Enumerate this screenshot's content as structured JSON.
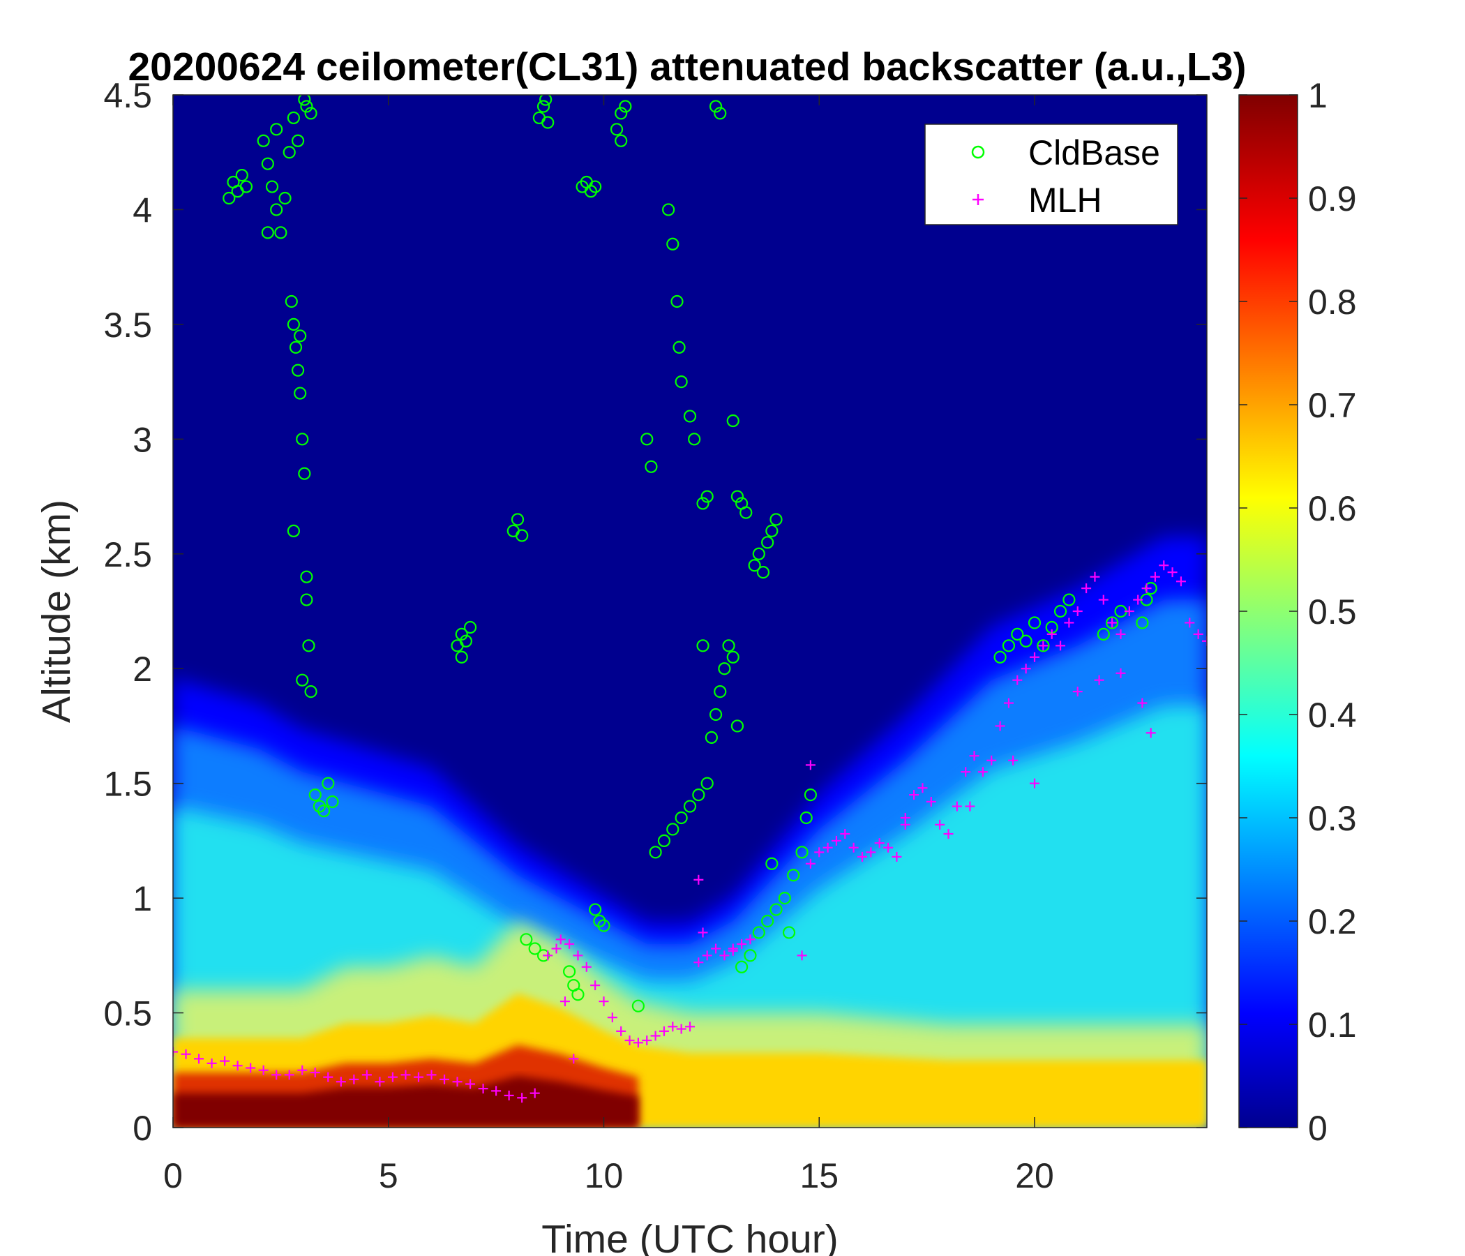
{
  "chart_data": {
    "type": "heatmap",
    "title": "20200624 ceilometer(CL31) attenuated backscatter (a.u.,L3)",
    "xlabel": "Time (UTC hour)",
    "ylabel": "Altitude (km)",
    "xlim": [
      0,
      24
    ],
    "ylim": [
      0,
      4.5
    ],
    "x_ticks": [
      "0",
      "5",
      "10",
      "15",
      "20"
    ],
    "x_tick_values": [
      0,
      5,
      10,
      15,
      20
    ],
    "y_ticks": [
      "0",
      "0.5",
      "1",
      "1.5",
      "2",
      "2.5",
      "3",
      "3.5",
      "4",
      "4.5"
    ],
    "y_tick_values": [
      0,
      0.5,
      1,
      1.5,
      2,
      2.5,
      3,
      3.5,
      4,
      4.5
    ],
    "colorbar": {
      "colormap": "jet",
      "clim": [
        0,
        1
      ],
      "ticks": [
        "0",
        "0.1",
        "0.2",
        "0.3",
        "0.4",
        "0.5",
        "0.6",
        "0.7",
        "0.8",
        "0.9",
        "1"
      ],
      "tick_values": [
        0,
        0.1,
        0.2,
        0.3,
        0.4,
        0.5,
        0.6,
        0.7,
        0.8,
        0.9,
        1
      ]
    },
    "legend": {
      "placement": "top-right",
      "entries": [
        {
          "label": "CldBase",
          "marker": "circle",
          "color": "#00ff00"
        },
        {
          "label": "MLH",
          "marker": "plus",
          "color": "#ff00ff"
        }
      ]
    },
    "heatmap_features": {
      "surface_layer": [
        [
          0,
          0.6
        ],
        [
          1,
          0.6
        ],
        [
          2,
          0.6
        ],
        [
          3,
          0.6
        ],
        [
          4,
          0.7
        ],
        [
          5,
          0.7
        ],
        [
          6,
          0.75
        ],
        [
          7,
          0.7
        ],
        [
          8,
          0.9
        ],
        [
          9,
          0.8
        ],
        [
          10,
          0.65
        ],
        [
          10.8,
          0.55
        ],
        [
          12,
          0.5
        ],
        [
          14,
          0.5
        ],
        [
          15,
          0.5
        ],
        [
          18,
          0.45
        ],
        [
          21,
          0.45
        ],
        [
          24,
          0.45
        ]
      ],
      "mixed_layer_top": [
        [
          0,
          1.75
        ],
        [
          2,
          1.65
        ],
        [
          3,
          1.55
        ],
        [
          4,
          1.5
        ],
        [
          6,
          1.4
        ],
        [
          8,
          1.1
        ],
        [
          10,
          0.9
        ],
        [
          11,
          0.8
        ],
        [
          12,
          0.8
        ],
        [
          13,
          0.9
        ],
        [
          14,
          1.1
        ],
        [
          15,
          1.3
        ],
        [
          17,
          1.6
        ],
        [
          19,
          1.95
        ],
        [
          21,
          2.1
        ],
        [
          23,
          2.3
        ],
        [
          24,
          2.3
        ]
      ]
    },
    "series": [
      {
        "name": "CldBase",
        "marker": "circle",
        "color": "#00ff00",
        "points": [
          [
            1.3,
            4.05
          ],
          [
            1.4,
            4.12
          ],
          [
            1.5,
            4.08
          ],
          [
            1.6,
            4.15
          ],
          [
            1.7,
            4.1
          ],
          [
            2.1,
            4.3
          ],
          [
            2.2,
            4.2
          ],
          [
            2.3,
            4.1
          ],
          [
            2.4,
            4.0
          ],
          [
            2.5,
            3.9
          ],
          [
            2.6,
            4.05
          ],
          [
            2.7,
            4.25
          ],
          [
            2.8,
            4.4
          ],
          [
            2.9,
            4.3
          ],
          [
            2.2,
            3.9
          ],
          [
            2.4,
            4.35
          ],
          [
            2.75,
            3.6
          ],
          [
            2.8,
            3.5
          ],
          [
            2.85,
            3.4
          ],
          [
            2.9,
            3.3
          ],
          [
            2.95,
            3.2
          ],
          [
            3.0,
            3.0
          ],
          [
            3.05,
            2.85
          ],
          [
            3.1,
            2.4
          ],
          [
            3.1,
            2.3
          ],
          [
            3.15,
            2.1
          ],
          [
            3.2,
            1.9
          ],
          [
            2.8,
            2.6
          ],
          [
            3.0,
            1.95
          ],
          [
            2.95,
            3.45
          ],
          [
            3.1,
            4.45
          ],
          [
            3.2,
            4.42
          ],
          [
            3.05,
            4.48
          ],
          [
            3.3,
            1.45
          ],
          [
            3.4,
            1.4
          ],
          [
            3.5,
            1.38
          ],
          [
            3.6,
            1.5
          ],
          [
            3.7,
            1.42
          ],
          [
            6.6,
            2.1
          ],
          [
            6.7,
            2.15
          ],
          [
            6.8,
            2.12
          ],
          [
            6.9,
            2.18
          ],
          [
            6.7,
            2.05
          ],
          [
            7.9,
            2.6
          ],
          [
            8.0,
            2.65
          ],
          [
            8.1,
            2.58
          ],
          [
            8.5,
            4.4
          ],
          [
            8.6,
            4.45
          ],
          [
            8.7,
            4.38
          ],
          [
            8.65,
            4.48
          ],
          [
            9.5,
            4.1
          ],
          [
            9.6,
            4.12
          ],
          [
            9.7,
            4.08
          ],
          [
            9.8,
            4.1
          ],
          [
            10.3,
            4.35
          ],
          [
            10.4,
            4.42
          ],
          [
            10.5,
            4.45
          ],
          [
            10.4,
            4.3
          ],
          [
            8.2,
            0.82
          ],
          [
            8.4,
            0.78
          ],
          [
            8.6,
            0.75
          ],
          [
            9.2,
            0.68
          ],
          [
            9.3,
            0.62
          ],
          [
            9.4,
            0.58
          ],
          [
            9.8,
            0.95
          ],
          [
            9.9,
            0.9
          ],
          [
            10.0,
            0.88
          ],
          [
            10.8,
            0.53
          ],
          [
            11.0,
            3.0
          ],
          [
            11.1,
            2.88
          ],
          [
            11.5,
            4.0
          ],
          [
            11.6,
            3.85
          ],
          [
            11.7,
            3.6
          ],
          [
            11.75,
            3.4
          ],
          [
            11.8,
            3.25
          ],
          [
            12.0,
            3.1
          ],
          [
            12.1,
            3.0
          ],
          [
            12.3,
            2.72
          ],
          [
            12.4,
            2.75
          ],
          [
            12.6,
            4.45
          ],
          [
            12.7,
            4.42
          ],
          [
            11.2,
            1.2
          ],
          [
            11.4,
            1.25
          ],
          [
            11.6,
            1.3
          ],
          [
            11.8,
            1.35
          ],
          [
            12.0,
            1.4
          ],
          [
            12.2,
            1.45
          ],
          [
            12.4,
            1.5
          ],
          [
            12.5,
            1.7
          ],
          [
            12.6,
            1.8
          ],
          [
            12.7,
            1.9
          ],
          [
            12.8,
            2.0
          ],
          [
            12.9,
            2.1
          ],
          [
            13.0,
            2.05
          ],
          [
            13.1,
            1.75
          ],
          [
            12.3,
            2.1
          ],
          [
            13.1,
            2.75
          ],
          [
            13.2,
            2.72
          ],
          [
            13.3,
            2.68
          ],
          [
            13.0,
            3.08
          ],
          [
            13.5,
            2.45
          ],
          [
            13.6,
            2.5
          ],
          [
            13.7,
            2.42
          ],
          [
            13.8,
            2.55
          ],
          [
            13.9,
            2.6
          ],
          [
            14.0,
            2.65
          ],
          [
            13.2,
            0.7
          ],
          [
            13.4,
            0.75
          ],
          [
            13.6,
            0.85
          ],
          [
            13.8,
            0.9
          ],
          [
            14.0,
            0.95
          ],
          [
            14.2,
            1.0
          ],
          [
            14.4,
            1.1
          ],
          [
            14.6,
            1.2
          ],
          [
            14.7,
            1.35
          ],
          [
            14.8,
            1.45
          ],
          [
            13.9,
            1.15
          ],
          [
            14.3,
            0.85
          ],
          [
            19.2,
            2.05
          ],
          [
            19.4,
            2.1
          ],
          [
            19.6,
            2.15
          ],
          [
            19.8,
            2.12
          ],
          [
            20.0,
            2.2
          ],
          [
            20.2,
            2.1
          ],
          [
            20.4,
            2.18
          ],
          [
            20.6,
            2.25
          ],
          [
            20.8,
            2.3
          ],
          [
            21.6,
            2.15
          ],
          [
            21.8,
            2.2
          ],
          [
            22.0,
            2.25
          ],
          [
            22.6,
            2.3
          ],
          [
            22.7,
            2.35
          ],
          [
            22.5,
            2.2
          ]
        ]
      },
      {
        "name": "MLH",
        "marker": "plus",
        "color": "#ff00ff",
        "points": [
          [
            0,
            0.33
          ],
          [
            0.3,
            0.32
          ],
          [
            0.6,
            0.3
          ],
          [
            0.9,
            0.28
          ],
          [
            1.2,
            0.29
          ],
          [
            1.5,
            0.27
          ],
          [
            1.8,
            0.26
          ],
          [
            2.1,
            0.25
          ],
          [
            2.4,
            0.23
          ],
          [
            2.7,
            0.23
          ],
          [
            3.0,
            0.25
          ],
          [
            3.3,
            0.24
          ],
          [
            3.6,
            0.22
          ],
          [
            3.9,
            0.2
          ],
          [
            4.2,
            0.21
          ],
          [
            4.5,
            0.23
          ],
          [
            4.8,
            0.2
          ],
          [
            5.1,
            0.22
          ],
          [
            5.4,
            0.23
          ],
          [
            5.7,
            0.22
          ],
          [
            6.0,
            0.23
          ],
          [
            6.3,
            0.21
          ],
          [
            6.6,
            0.2
          ],
          [
            6.9,
            0.19
          ],
          [
            7.2,
            0.17
          ],
          [
            7.5,
            0.16
          ],
          [
            7.8,
            0.14
          ],
          [
            8.1,
            0.13
          ],
          [
            8.4,
            0.15
          ],
          [
            8.7,
            0.75
          ],
          [
            8.9,
            0.78
          ],
          [
            9.0,
            0.82
          ],
          [
            9.2,
            0.8
          ],
          [
            9.4,
            0.75
          ],
          [
            9.6,
            0.7
          ],
          [
            9.8,
            0.62
          ],
          [
            10.0,
            0.55
          ],
          [
            10.2,
            0.48
          ],
          [
            10.4,
            0.42
          ],
          [
            10.6,
            0.38
          ],
          [
            10.8,
            0.37
          ],
          [
            11.0,
            0.38
          ],
          [
            11.2,
            0.4
          ],
          [
            11.4,
            0.42
          ],
          [
            11.6,
            0.44
          ],
          [
            11.8,
            0.43
          ],
          [
            12.0,
            0.44
          ],
          [
            9.3,
            0.3
          ],
          [
            9.1,
            0.55
          ],
          [
            12.2,
            0.72
          ],
          [
            12.4,
            0.75
          ],
          [
            12.6,
            0.78
          ],
          [
            12.8,
            0.75
          ],
          [
            13.0,
            0.77
          ],
          [
            13.2,
            0.8
          ],
          [
            13.4,
            0.82
          ],
          [
            12.3,
            0.85
          ],
          [
            12.2,
            1.08
          ],
          [
            13.0,
            0.78
          ],
          [
            14.6,
            0.75
          ],
          [
            14.8,
            1.15
          ],
          [
            15.0,
            1.2
          ],
          [
            15.2,
            1.22
          ],
          [
            15.4,
            1.25
          ],
          [
            15.6,
            1.28
          ],
          [
            15.8,
            1.22
          ],
          [
            16.0,
            1.18
          ],
          [
            16.2,
            1.2
          ],
          [
            16.4,
            1.24
          ],
          [
            16.6,
            1.22
          ],
          [
            16.8,
            1.18
          ],
          [
            17.0,
            1.35
          ],
          [
            17.2,
            1.45
          ],
          [
            17.4,
            1.48
          ],
          [
            17.6,
            1.42
          ],
          [
            17.8,
            1.32
          ],
          [
            18.0,
            1.28
          ],
          [
            18.2,
            1.4
          ],
          [
            18.4,
            1.55
          ],
          [
            18.6,
            1.62
          ],
          [
            18.8,
            1.55
          ],
          [
            19.0,
            1.6
          ],
          [
            19.2,
            1.75
          ],
          [
            19.4,
            1.85
          ],
          [
            19.6,
            1.95
          ],
          [
            19.8,
            2.0
          ],
          [
            20.0,
            2.05
          ],
          [
            20.2,
            2.1
          ],
          [
            20.4,
            2.15
          ],
          [
            20.6,
            2.1
          ],
          [
            20.8,
            2.2
          ],
          [
            21.0,
            2.25
          ],
          [
            21.2,
            2.35
          ],
          [
            21.4,
            2.4
          ],
          [
            21.6,
            2.3
          ],
          [
            21.8,
            2.2
          ],
          [
            22.0,
            2.15
          ],
          [
            22.2,
            2.25
          ],
          [
            22.4,
            2.3
          ],
          [
            22.6,
            2.35
          ],
          [
            22.8,
            2.4
          ],
          [
            23.0,
            2.45
          ],
          [
            23.2,
            2.42
          ],
          [
            23.4,
            2.38
          ],
          [
            23.6,
            2.2
          ],
          [
            23.8,
            2.15
          ],
          [
            24.0,
            2.12
          ],
          [
            21.0,
            1.9
          ],
          [
            21.5,
            1.95
          ],
          [
            22.0,
            1.98
          ],
          [
            22.5,
            1.85
          ],
          [
            22.7,
            1.72
          ],
          [
            20.0,
            1.5
          ],
          [
            19.5,
            1.6
          ],
          [
            18.5,
            1.4
          ],
          [
            17.0,
            1.32
          ],
          [
            14.8,
            1.58
          ]
        ]
      }
    ]
  }
}
